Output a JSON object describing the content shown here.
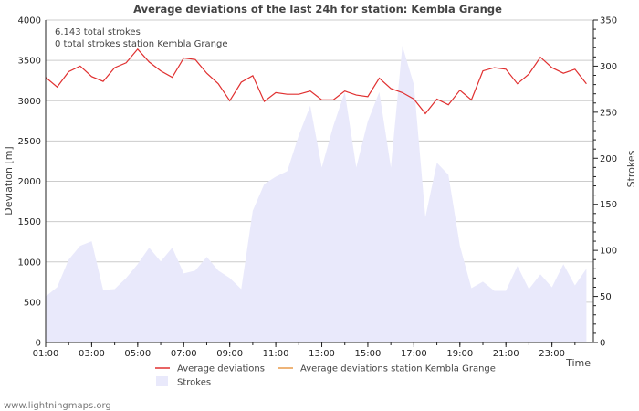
{
  "colors": {
    "deviation_line": "#e03030",
    "station_line": "#e89a4a",
    "strokes_fill": "#e9e9fb",
    "grid": "#cccccc",
    "axis": "#222222"
  },
  "info": {
    "total_strokes": "6.143 total strokes",
    "station_strokes": "0 total strokes station Kembla Grange"
  },
  "watermark": "www.lightningmaps.org",
  "chart_data": {
    "type": "line",
    "title": "Average deviations of the last 24h for station: Kembla Grange",
    "xlabel": "Time",
    "ylabel": "Deviation  [m]",
    "y2label": "Strokes",
    "xlim": [
      1,
      24.8
    ],
    "ylim": [
      0,
      4000
    ],
    "y2lim": [
      0,
      350
    ],
    "x_ticks": [
      1,
      3,
      5,
      7,
      9,
      11,
      13,
      15,
      17,
      19,
      21,
      23
    ],
    "x_tick_labels": [
      "01:00",
      "03:00",
      "05:00",
      "07:00",
      "09:00",
      "11:00",
      "13:00",
      "15:00",
      "17:00",
      "19:00",
      "21:00",
      "23:00"
    ],
    "y_ticks": [
      0,
      500,
      1000,
      1500,
      2000,
      2500,
      3000,
      3500,
      4000
    ],
    "y2_ticks": [
      0,
      50,
      100,
      150,
      200,
      250,
      300,
      350
    ],
    "legend": [
      {
        "name": "Average deviations",
        "kind": "line",
        "color_key": "deviation_line"
      },
      {
        "name": "Average deviations station Kembla Grange",
        "kind": "line",
        "color_key": "station_line"
      },
      {
        "name": "Strokes",
        "kind": "area",
        "color_key": "strokes_fill"
      }
    ],
    "series": [
      {
        "name": "Average deviations",
        "axis": "left",
        "points": [
          [
            1.0,
            3290
          ],
          [
            1.5,
            3170
          ],
          [
            2.0,
            3360
          ],
          [
            2.5,
            3430
          ],
          [
            3.0,
            3300
          ],
          [
            3.5,
            3240
          ],
          [
            4.0,
            3410
          ],
          [
            4.5,
            3470
          ],
          [
            5.0,
            3640
          ],
          [
            5.5,
            3480
          ],
          [
            6.0,
            3370
          ],
          [
            6.5,
            3290
          ],
          [
            7.0,
            3530
          ],
          [
            7.5,
            3510
          ],
          [
            8.0,
            3340
          ],
          [
            8.5,
            3210
          ],
          [
            9.0,
            3000
          ],
          [
            9.5,
            3230
          ],
          [
            10.0,
            3310
          ],
          [
            10.5,
            2990
          ],
          [
            11.0,
            3100
          ],
          [
            11.5,
            3080
          ],
          [
            12.0,
            3080
          ],
          [
            12.5,
            3120
          ],
          [
            13.0,
            3010
          ],
          [
            13.5,
            3010
          ],
          [
            14.0,
            3120
          ],
          [
            14.5,
            3070
          ],
          [
            15.0,
            3050
          ],
          [
            15.5,
            3280
          ],
          [
            16.0,
            3150
          ],
          [
            16.5,
            3100
          ],
          [
            17.0,
            3020
          ],
          [
            17.5,
            2840
          ],
          [
            18.0,
            3020
          ],
          [
            18.5,
            2950
          ],
          [
            19.0,
            3130
          ],
          [
            19.5,
            3010
          ],
          [
            20.0,
            3370
          ],
          [
            20.5,
            3410
          ],
          [
            21.0,
            3390
          ],
          [
            21.5,
            3210
          ],
          [
            22.0,
            3330
          ],
          [
            22.5,
            3540
          ],
          [
            23.0,
            3410
          ],
          [
            23.5,
            3340
          ],
          [
            24.0,
            3390
          ],
          [
            24.5,
            3210
          ]
        ]
      },
      {
        "name": "Strokes",
        "axis": "right",
        "points": [
          [
            1.0,
            50
          ],
          [
            1.5,
            60
          ],
          [
            2.0,
            90
          ],
          [
            2.5,
            105
          ],
          [
            3.0,
            110
          ],
          [
            3.5,
            57
          ],
          [
            4.0,
            58
          ],
          [
            4.5,
            70
          ],
          [
            5.0,
            85
          ],
          [
            5.5,
            103
          ],
          [
            6.0,
            88
          ],
          [
            6.5,
            103
          ],
          [
            7.0,
            75
          ],
          [
            7.5,
            78
          ],
          [
            8.0,
            93
          ],
          [
            8.5,
            78
          ],
          [
            9.0,
            70
          ],
          [
            9.5,
            58
          ],
          [
            10.0,
            143
          ],
          [
            10.5,
            172
          ],
          [
            11.0,
            180
          ],
          [
            11.5,
            186
          ],
          [
            12.0,
            225
          ],
          [
            12.5,
            257
          ],
          [
            13.0,
            190
          ],
          [
            13.5,
            235
          ],
          [
            14.0,
            272
          ],
          [
            14.5,
            190
          ],
          [
            15.0,
            240
          ],
          [
            15.5,
            272
          ],
          [
            16.0,
            190
          ],
          [
            16.5,
            322
          ],
          [
            17.0,
            280
          ],
          [
            17.5,
            136
          ],
          [
            18.0,
            195
          ],
          [
            18.5,
            182
          ],
          [
            19.0,
            105
          ],
          [
            19.5,
            59
          ],
          [
            20.0,
            66
          ],
          [
            20.5,
            56
          ],
          [
            21.0,
            56
          ],
          [
            21.5,
            83
          ],
          [
            22.0,
            58
          ],
          [
            22.5,
            74
          ],
          [
            23.0,
            60
          ],
          [
            23.5,
            85
          ],
          [
            24.0,
            62
          ],
          [
            24.5,
            80
          ]
        ]
      },
      {
        "name": "Average deviations station Kembla Grange",
        "axis": "left",
        "points": []
      }
    ]
  }
}
